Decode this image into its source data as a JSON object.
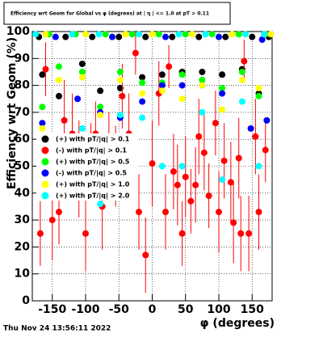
{
  "chart_data": {
    "type": "scatter",
    "title": "Efficiency wrt Geom for Global vs φ (degrees) at | η | <= 1.0 at pT > 0.11",
    "x_label": "φ (degrees)",
    "y_label": "Efficiency wrt Geom (%)",
    "timestamp": "Thu Nov 24 13:56:11 2022",
    "xlim": [
      -180,
      180
    ],
    "ylim": [
      0,
      100
    ],
    "xticks": [
      -150,
      -100,
      -50,
      0,
      50,
      100,
      150
    ],
    "yticks": [
      0,
      10,
      20,
      30,
      40,
      50,
      60,
      70,
      80,
      90,
      100
    ],
    "grid": true,
    "legend": "left",
    "series": [
      {
        "name": "(+) with pT/|q| > 0.1",
        "color": "#000000",
        "x": [
          -165,
          -140,
          -105,
          -78,
          -48,
          -15,
          15,
          45,
          75,
          105,
          135,
          160,
          -170,
          -130,
          -90,
          -50,
          -10,
          30,
          70,
          110,
          150,
          175
        ],
        "values": [
          84,
          76,
          88,
          78,
          79,
          83,
          84,
          85,
          85,
          84,
          86,
          77,
          98,
          98,
          98,
          98,
          98,
          98,
          98,
          98,
          98,
          98
        ]
      },
      {
        "name": "(-) with pT/|q| > 0.1",
        "color": "#ff0000",
        "x": [
          -168,
          -160,
          -150,
          -140,
          -132,
          -120,
          -110,
          -100,
          -92,
          -85,
          -75,
          -65,
          -55,
          -45,
          -35,
          -25,
          -20,
          -10,
          0,
          10,
          20,
          25,
          32,
          38,
          45,
          50,
          58,
          65,
          70,
          78,
          85,
          95,
          100,
          108,
          118,
          122,
          130,
          133,
          138,
          145,
          155,
          160,
          170
        ],
        "values": [
          25,
          86,
          30,
          33,
          67,
          62,
          49,
          25,
          52,
          62,
          35,
          56,
          50,
          76,
          62,
          92,
          33,
          17,
          51,
          77,
          33,
          87,
          48,
          43,
          25,
          46,
          37,
          43,
          61,
          55,
          39,
          66,
          33,
          52,
          44,
          29,
          53,
          25,
          89,
          25,
          61,
          33,
          56
        ],
        "errors": [
          12,
          10,
          15,
          12,
          15,
          15,
          18,
          14,
          14,
          12,
          16,
          14,
          15,
          12,
          15,
          8,
          14,
          14,
          16,
          12,
          14,
          8,
          14,
          15,
          12,
          15,
          12,
          14,
          14,
          14,
          12,
          12,
          15,
          14,
          15,
          15,
          15,
          14,
          8,
          14,
          14,
          14,
          12
        ]
      },
      {
        "name": "(+) with pT/|q| > 0.5",
        "color": "#00ff00",
        "x": [
          -165,
          -140,
          -105,
          -78,
          -48,
          -15,
          15,
          45,
          75,
          105,
          135,
          160,
          -155,
          -115,
          -70,
          -30,
          10,
          50,
          90,
          130,
          170
        ],
        "values": [
          72,
          87,
          85,
          72,
          85,
          81,
          81,
          84,
          82,
          79,
          85,
          76,
          99,
          99,
          99,
          99,
          99,
          99,
          99,
          99,
          99
        ]
      },
      {
        "name": "(-) with pT/|q| > 0.5",
        "color": "#0000ff",
        "x": [
          -165,
          -112,
          -78,
          -48,
          -15,
          15,
          45,
          75,
          105,
          148,
          172,
          -145,
          -60,
          20,
          100,
          165
        ],
        "values": [
          66,
          75,
          70,
          68,
          74,
          80,
          80,
          80,
          77,
          64,
          67,
          98,
          98,
          98,
          98,
          97
        ]
      },
      {
        "name": "(+) with pT/|q| > 1.0",
        "color": "#ffff00",
        "x": [
          -165,
          -140,
          -105,
          -78,
          -48,
          -15,
          15,
          45,
          75,
          105,
          135,
          160,
          -160,
          -100,
          -40,
          0,
          60,
          120,
          178
        ],
        "values": [
          64,
          82,
          83,
          69,
          82,
          77,
          78,
          75,
          80,
          71,
          82,
          79,
          99,
          99,
          99,
          99,
          99,
          99,
          99
        ]
      },
      {
        "name": "(+) with pT/|q| > 2.0",
        "color": "#00ffff",
        "x": [
          -165,
          -140,
          -105,
          -78,
          -48,
          -15,
          15,
          45,
          75,
          105,
          135,
          160,
          -175,
          -120,
          -80,
          -20,
          40,
          80,
          140,
          168
        ],
        "values": [
          59,
          59,
          64,
          36,
          69,
          68,
          50,
          50,
          70,
          45,
          74,
          50,
          99,
          99,
          99,
          99,
          99,
          99,
          99,
          99
        ]
      }
    ]
  }
}
